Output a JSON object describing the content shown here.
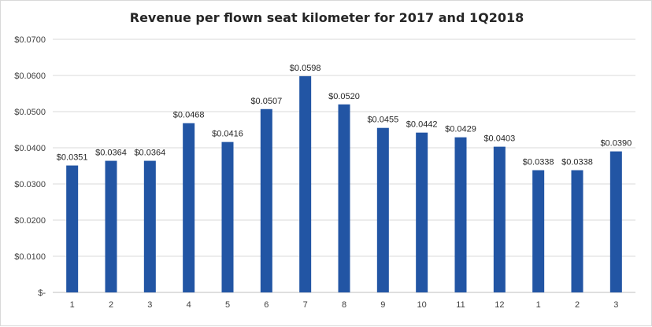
{
  "chart_data": {
    "type": "bar",
    "title": "Revenue per flown seat kilometer for 2017 and 1Q2018",
    "xlabel": "",
    "ylabel": "",
    "categories": [
      "1",
      "2",
      "3",
      "4",
      "5",
      "6",
      "7",
      "8",
      "9",
      "10",
      "11",
      "12",
      "1",
      "2",
      "3"
    ],
    "values": [
      0.0351,
      0.0364,
      0.0364,
      0.0468,
      0.0416,
      0.0507,
      0.0598,
      0.052,
      0.0455,
      0.0442,
      0.0429,
      0.0403,
      0.0338,
      0.0338,
      0.039
    ],
    "data_labels": [
      "$0.0351",
      "$0.0364",
      "$0.0364",
      "$0.0468",
      "$0.0416",
      "$0.0507",
      "$0.0598",
      "$0.0520",
      "$0.0455",
      "$0.0442",
      "$0.0429",
      "$0.0403",
      "$0.0338",
      "$0.0338",
      "$0.0390"
    ],
    "ylim": [
      0,
      0.07
    ],
    "yticks": [
      0,
      0.01,
      0.02,
      0.03,
      0.04,
      0.05,
      0.06,
      0.07
    ],
    "ytick_labels": [
      "$-",
      "$0.0100",
      "$0.0200",
      "$0.0300",
      "$0.0400",
      "$0.0500",
      "$0.0600",
      "$0.0700"
    ],
    "grid": true,
    "legend": "none",
    "bar_color": "#2255a4"
  }
}
